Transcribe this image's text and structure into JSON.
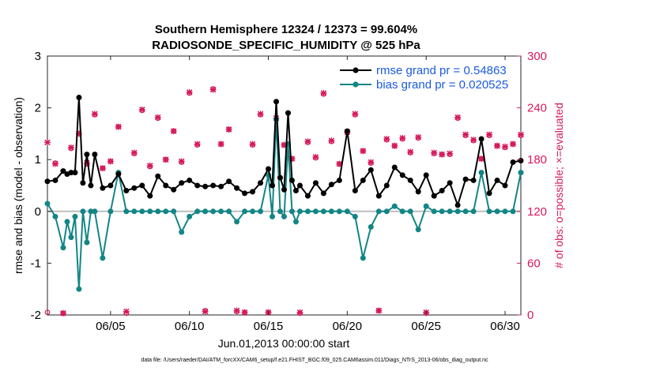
{
  "chart_data": {
    "type": "line",
    "title_line1": "Southern Hemisphere 12324 / 12373 = 99.604%",
    "title_line2": "RADIOSONDE_SPECIFIC_HUMIDITY @ 525 hPa",
    "xlabel": "Jun.01,2013 00:00:00 start",
    "ylabel_left": "rmse and bias (model - observation)",
    "ylabel_right": "# of obs: o=possible; ×=evaluated",
    "footer": "data file: /Users/raeder/DAI/ATM_forcXX/CAM6_setup/f.e21.FHIST_BGC.f09_025.CAM6assim.011/Diags_NTrS_2013-06/obs_diag_output.nc",
    "xlim": [
      1,
      31
    ],
    "ylim_left": [
      -2,
      3
    ],
    "ylim_right": [
      0,
      300
    ],
    "xticks": [
      5,
      10,
      15,
      20,
      25,
      30
    ],
    "xtick_labels": [
      "06/05",
      "06/10",
      "06/15",
      "06/20",
      "06/25",
      "06/30"
    ],
    "yticks_left": [
      -2,
      -1,
      0,
      1,
      2,
      3
    ],
    "ytick_labels_left": [
      "-2",
      "-1",
      "0",
      "1",
      "2",
      "3"
    ],
    "yticks_right": [
      0,
      60,
      120,
      180,
      240,
      300
    ],
    "ytick_labels_right": [
      "0",
      "60",
      "120",
      "180",
      "240",
      "300"
    ],
    "colors": {
      "rmse": "#000000",
      "bias": "#138585",
      "obs": "#d6195a",
      "legend_text": "#1a5ae0",
      "zero_line": "#bdbdbd"
    },
    "series": [
      {
        "name": "rmse grand pr = 0.54863",
        "x": [
          1.0,
          1.5,
          2.0,
          2.25,
          2.5,
          2.75,
          3.0,
          3.25,
          3.5,
          3.75,
          4.0,
          4.5,
          5.0,
          5.5,
          6.0,
          6.5,
          7.0,
          7.5,
          8.0,
          8.5,
          9.0,
          9.5,
          10.0,
          10.5,
          11.0,
          11.5,
          12.0,
          12.5,
          13.0,
          13.5,
          14.0,
          14.5,
          15.0,
          15.25,
          15.5,
          15.75,
          16.0,
          16.25,
          16.5,
          16.75,
          17.0,
          17.5,
          18.0,
          18.5,
          19.0,
          19.5,
          20.0,
          20.5,
          21.0,
          21.5,
          22.0,
          22.5,
          23.0,
          23.5,
          24.0,
          24.5,
          25.0,
          25.5,
          26.0,
          26.5,
          27.0,
          27.5,
          28.0,
          28.5,
          29.0,
          29.5,
          30.0,
          30.5,
          31.0
        ],
        "values": [
          0.58,
          0.6,
          0.78,
          0.72,
          0.75,
          0.75,
          2.2,
          0.55,
          1.1,
          0.5,
          1.1,
          0.45,
          0.5,
          0.72,
          0.4,
          0.45,
          0.5,
          0.3,
          0.68,
          0.5,
          0.42,
          0.55,
          0.6,
          0.5,
          0.48,
          0.5,
          0.48,
          0.58,
          0.45,
          0.35,
          0.38,
          0.55,
          0.82,
          0.5,
          2.12,
          0.65,
          0.42,
          1.9,
          0.6,
          0.4,
          0.5,
          0.3,
          0.55,
          0.35,
          0.52,
          0.6,
          1.55,
          0.4,
          0.6,
          0.8,
          0.3,
          0.5,
          0.85,
          0.7,
          0.6,
          0.38,
          0.7,
          0.3,
          0.4,
          0.55,
          0.12,
          0.62,
          0.6,
          1.4,
          0.35,
          0.6,
          0.5,
          0.95,
          0.98
        ]
      },
      {
        "name": "bias grand pr = 0.020525",
        "x": [
          1.0,
          1.5,
          2.0,
          2.25,
          2.5,
          2.75,
          3.0,
          3.25,
          3.5,
          3.75,
          4.0,
          4.5,
          5.0,
          5.5,
          6.0,
          6.5,
          7.0,
          7.5,
          8.0,
          8.5,
          9.0,
          9.5,
          10.0,
          10.5,
          11.0,
          11.5,
          12.0,
          12.5,
          13.0,
          13.5,
          14.0,
          14.5,
          15.0,
          15.25,
          15.5,
          15.75,
          16.0,
          16.25,
          16.5,
          16.75,
          17.0,
          17.5,
          18.0,
          18.5,
          19.0,
          19.5,
          20.0,
          20.5,
          21.0,
          21.5,
          22.0,
          22.5,
          23.0,
          23.5,
          24.0,
          24.5,
          25.0,
          25.5,
          26.0,
          26.5,
          27.0,
          27.5,
          28.0,
          28.5,
          29.0,
          29.5,
          30.0,
          30.5,
          31.0
        ],
        "values": [
          0.15,
          -0.1,
          -0.7,
          -0.2,
          -0.5,
          -0.1,
          -1.5,
          0.0,
          -0.6,
          0.0,
          0.0,
          -0.9,
          0.0,
          0.75,
          0.0,
          0.0,
          0.0,
          0.0,
          0.0,
          0.0,
          0.0,
          -0.4,
          -0.1,
          0.0,
          0.0,
          0.0,
          0.0,
          0.0,
          -0.2,
          0.0,
          0.0,
          0.0,
          0.7,
          -0.1,
          1.78,
          0.0,
          -0.1,
          1.3,
          0.0,
          -0.2,
          0.0,
          0.0,
          0.0,
          0.0,
          0.0,
          0.0,
          0.0,
          -0.1,
          -0.9,
          -0.3,
          0.0,
          0.0,
          0.1,
          0.0,
          0.0,
          -0.35,
          0.1,
          0.0,
          0.0,
          0.0,
          0.0,
          0.0,
          0.0,
          0.75,
          0.0,
          0.0,
          0.0,
          0.0,
          0.75
        ]
      }
    ],
    "obs_possible": {
      "x": [
        1.0,
        1.5,
        2.0,
        2.5,
        3.0,
        3.5,
        4.0,
        4.5,
        5.0,
        5.5,
        6.0,
        6.5,
        7.0,
        7.5,
        8.0,
        8.5,
        9.0,
        9.5,
        10.0,
        10.5,
        11.0,
        11.5,
        12.0,
        12.5,
        13.0,
        13.5,
        14.0,
        14.5,
        15.0,
        15.5,
        16.0,
        16.5,
        17.0,
        17.5,
        18.0,
        18.5,
        19.0,
        19.5,
        20.0,
        20.5,
        21.0,
        21.5,
        22.0,
        22.5,
        23.0,
        23.5,
        24.0,
        24.5,
        25.0,
        25.5,
        26.0,
        26.5,
        27.0,
        27.5,
        28.0,
        28.5,
        29.0,
        29.5,
        30.0,
        30.5,
        31.0
      ],
      "values": [
        3,
        176,
        2,
        193,
        210,
        175,
        232,
        170,
        178,
        218,
        2,
        187,
        237,
        172,
        228,
        180,
        213,
        177,
        257,
        197,
        5,
        262,
        198,
        215,
        4,
        3,
        197,
        232,
        3,
        227,
        197,
        181,
        2,
        200,
        182,
        256,
        201,
        175,
        211,
        232,
        190,
        176,
        5,
        203,
        196,
        204,
        188,
        205,
        2,
        187,
        186,
        186,
        228,
        208,
        202,
        181,
        208,
        196,
        194,
        198,
        208
      ]
    },
    "obs_evaluated": {
      "x": [
        1.0,
        1.5,
        2.0,
        2.5,
        3.0,
        3.5,
        4.0,
        4.5,
        5.0,
        5.5,
        6.0,
        6.5,
        7.0,
        7.5,
        8.0,
        8.5,
        9.0,
        9.5,
        10.0,
        10.5,
        11.0,
        11.5,
        12.0,
        12.5,
        13.0,
        13.5,
        14.0,
        14.5,
        15.0,
        15.5,
        16.0,
        16.5,
        17.0,
        17.5,
        18.0,
        18.5,
        19.0,
        19.5,
        20.0,
        20.5,
        21.0,
        21.5,
        22.0,
        22.5,
        23.0,
        23.5,
        24.0,
        24.5,
        25.0,
        25.5,
        26.0,
        26.5,
        27.0,
        27.5,
        28.0,
        28.5,
        29.0,
        29.5,
        30.0,
        30.5,
        31.0
      ],
      "values": [
        200,
        175,
        2,
        194,
        210,
        176,
        233,
        170,
        178,
        218,
        4,
        188,
        238,
        173,
        229,
        180,
        213,
        178,
        258,
        198,
        4,
        261,
        198,
        215,
        5,
        3,
        198,
        233,
        3,
        228,
        197,
        181,
        3,
        201,
        183,
        257,
        202,
        175,
        212,
        233,
        190,
        177,
        5,
        204,
        196,
        205,
        189,
        206,
        3,
        188,
        186,
        187,
        229,
        209,
        203,
        181,
        209,
        196,
        195,
        198,
        209
      ]
    }
  }
}
